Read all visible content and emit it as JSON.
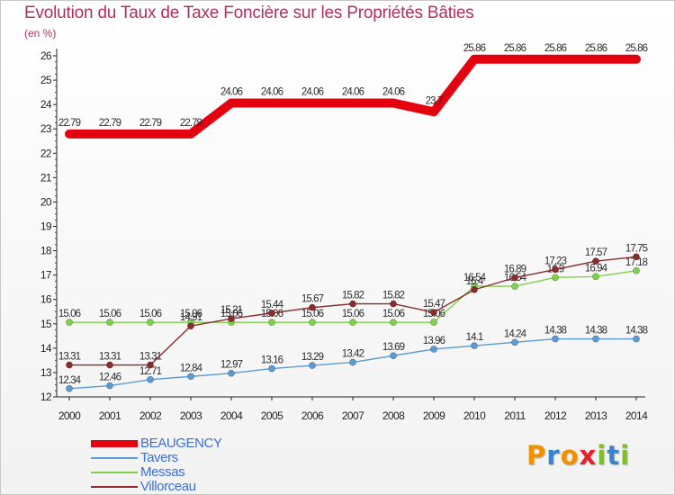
{
  "title": "Evolution du Taux de Taxe Foncière sur les Propriétés Bâties",
  "subtitle": "(en %)",
  "logo": {
    "text": "Proxiti",
    "colors": [
      "#f29100",
      "#3a86c8",
      "#f29100",
      "#e5202e",
      "#7bbf2a",
      "#3a86c8",
      "#7bbf2a"
    ]
  },
  "chart_data": {
    "type": "line",
    "title": "Evolution du Taux de Taxe Foncière sur les Propriétés Bâties",
    "ylabel": "(en %)",
    "xlabel": "",
    "ylim": [
      12,
      26
    ],
    "yticks": [
      12,
      13,
      14,
      15,
      16,
      17,
      18,
      19,
      20,
      21,
      22,
      23,
      24,
      25,
      26
    ],
    "x": [
      2000,
      2001,
      2002,
      2003,
      2004,
      2005,
      2006,
      2007,
      2008,
      2009,
      2010,
      2011,
      2012,
      2013,
      2014
    ],
    "series": [
      {
        "name": "BEAUGENCY",
        "color": "#e3000f",
        "values": [
          22.79,
          22.79,
          22.79,
          22.79,
          24.06,
          24.06,
          24.06,
          24.06,
          24.06,
          23.7,
          25.86,
          25.86,
          25.86,
          25.86,
          25.86
        ],
        "labels": [
          "22.79",
          "22.79",
          "22.79",
          "22.79",
          "24.06",
          "24.06",
          "24.06",
          "24.06",
          "24.06",
          "23.7",
          "25.86",
          "25.86",
          "25.86",
          "25.86",
          "25.86"
        ]
      },
      {
        "name": "Tavers",
        "color": "#5b9bd5",
        "values": [
          12.34,
          12.46,
          12.71,
          12.84,
          12.97,
          13.16,
          13.29,
          13.42,
          13.69,
          13.96,
          14.1,
          14.24,
          14.38,
          14.38,
          14.38
        ],
        "labels": [
          "12.34",
          "12.46",
          "12.71",
          "12.84",
          "12.97",
          "13.16",
          "13.29",
          "13.42",
          "13.69",
          "13.96",
          "14.1",
          "14.24",
          "14.38",
          "14.38",
          "14.38"
        ]
      },
      {
        "name": "Messas",
        "color": "#7fd04a",
        "values": [
          15.06,
          15.06,
          15.06,
          15.06,
          15.06,
          15.06,
          15.06,
          15.06,
          15.06,
          15.06,
          16.54,
          16.54,
          16.9,
          16.94,
          17.18
        ],
        "labels": [
          "15.06",
          "15.06",
          "15.06",
          "15.06",
          "15.06",
          "15.06",
          "15.06",
          "15.06",
          "15.06",
          "15.06",
          "16.54",
          "16.54",
          "16.9",
          "16.94",
          "17.18"
        ]
      },
      {
        "name": "Villorceau",
        "color": "#8b2b2b",
        "values": [
          13.31,
          13.31,
          13.31,
          14.91,
          15.21,
          15.44,
          15.67,
          15.82,
          15.82,
          15.47,
          16.4,
          16.89,
          17.23,
          17.57,
          17.75
        ],
        "labels": [
          "13.31",
          "13.31",
          "13.31",
          "14.91",
          "15.21",
          "15.44",
          "15.67",
          "15.82",
          "15.82",
          "15.47",
          "16.4",
          "16.89",
          "17.23",
          "17.57",
          "17.75"
        ]
      }
    ],
    "legend": {
      "position": "bottom-left"
    },
    "grid": false
  }
}
